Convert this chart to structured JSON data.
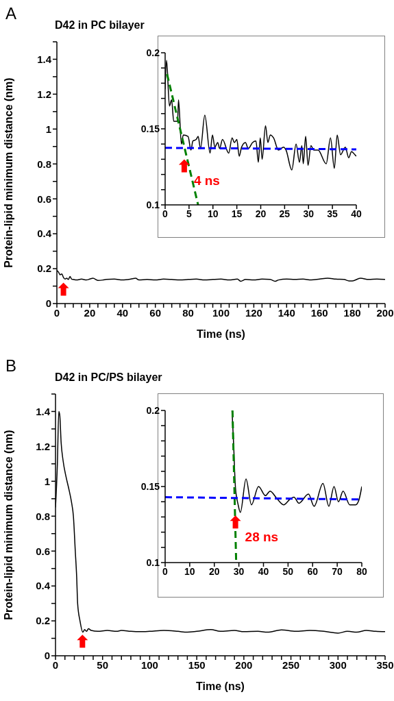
{
  "chart_data": [
    {
      "type": "line",
      "title": "D42 in PC bilayer",
      "xlabel": "Time (ns)",
      "ylabel": "Protein-lipid minimum distance (nm)",
      "annotations": [
        "A"
      ],
      "xlim": [
        0,
        200
      ],
      "xticks": [
        0,
        {
          "value": 5,
          "label": null
        },
        {
          "value": 10,
          "label": null
        },
        {
          "value": 15,
          "label": null
        },
        20,
        {
          "value": 25,
          "label": null
        },
        {
          "value": 30,
          "label": null
        },
        {
          "value": 35,
          "label": null
        },
        40,
        {
          "value": 45,
          "label": null
        },
        {
          "value": 50,
          "label": null
        },
        {
          "value": 55,
          "label": null
        },
        60,
        {
          "value": 65,
          "label": null
        },
        {
          "value": 70,
          "label": null
        },
        {
          "value": 75,
          "label": null
        },
        80,
        {
          "value": 85,
          "label": null
        },
        {
          "value": 90,
          "label": null
        },
        {
          "value": 95,
          "label": null
        },
        100,
        {
          "value": 105,
          "label": null
        },
        {
          "value": 110,
          "label": null
        },
        {
          "value": 115,
          "label": null
        },
        120,
        {
          "value": 125,
          "label": null
        },
        {
          "value": 130,
          "label": null
        },
        {
          "value": 135,
          "label": null
        },
        140,
        {
          "value": 145,
          "label": null
        },
        {
          "value": 150,
          "label": null
        },
        {
          "value": 155,
          "label": null
        },
        160,
        {
          "value": 165,
          "label": null
        },
        {
          "value": 170,
          "label": null
        },
        {
          "value": 175,
          "label": null
        },
        180,
        {
          "value": 185,
          "label": null
        },
        {
          "value": 190,
          "label": null
        },
        {
          "value": 195,
          "label": null
        },
        200
      ],
      "ylim": [
        0,
        1.5
      ],
      "yticks": [
        0,
        {
          "value": 0.1,
          "label": null
        },
        0.2,
        {
          "value": 0.3,
          "label": null
        },
        0.4,
        {
          "value": 0.5,
          "label": null
        },
        0.6,
        {
          "value": 0.7,
          "label": null
        },
        0.8,
        {
          "value": 0.9,
          "label": null
        },
        1,
        {
          "value": 1.1,
          "label": null
        },
        1.2,
        {
          "value": 1.3,
          "label": null
        },
        1.4,
        {
          "value": 1.5,
          "label": null
        }
      ],
      "series": [
        {
          "color": "#000000",
          "x": [
            0,
            1,
            2,
            3,
            4,
            5,
            6,
            7,
            8,
            9,
            10,
            12,
            15,
            18,
            20,
            22,
            25,
            28,
            30,
            35,
            40,
            45,
            48,
            50,
            55,
            60,
            65,
            70,
            75,
            80,
            85,
            90,
            95,
            100,
            105,
            110,
            112,
            115,
            120,
            125,
            130,
            133,
            135,
            140,
            145,
            150,
            155,
            160,
            165,
            170,
            175,
            178,
            180,
            185,
            190,
            195,
            200
          ],
          "values": [
            0.19,
            0.18,
            0.165,
            0.17,
            0.15,
            0.14,
            0.145,
            0.138,
            0.155,
            0.14,
            0.138,
            0.135,
            0.14,
            0.135,
            0.14,
            0.145,
            0.133,
            0.135,
            0.138,
            0.14,
            0.135,
            0.14,
            0.145,
            0.135,
            0.138,
            0.135,
            0.14,
            0.138,
            0.135,
            0.138,
            0.14,
            0.135,
            0.138,
            0.14,
            0.135,
            0.14,
            0.128,
            0.138,
            0.135,
            0.14,
            0.138,
            0.128,
            0.135,
            0.14,
            0.138,
            0.14,
            0.135,
            0.14,
            0.145,
            0.14,
            0.138,
            0.13,
            0.13,
            0.145,
            0.138,
            0.14,
            0.138
          ]
        }
      ]
    },
    {
      "type": "line",
      "annotations": [
        {
          "text": "4 ns",
          "x": 4,
          "y": 0.13
        }
      ],
      "xlim": [
        0,
        40
      ],
      "xticks": [
        0,
        5,
        10,
        15,
        20,
        25,
        30,
        35,
        40
      ],
      "ylim": [
        0.1,
        0.2
      ],
      "yticks": [
        0.1,
        {
          "value": 0.11,
          "label": null
        },
        {
          "value": 0.12,
          "label": null
        },
        {
          "value": 0.13,
          "label": null
        },
        {
          "value": 0.14,
          "label": null
        },
        0.15,
        {
          "value": 0.16,
          "label": null
        },
        {
          "value": 0.17,
          "label": null
        },
        {
          "value": 0.18,
          "label": null
        },
        {
          "value": 0.19,
          "label": null
        },
        0.2
      ],
      "series": [
        {
          "color": "#000000",
          "x": [
            0,
            0.3,
            0.9,
            1.35,
            1.8,
            2.6,
            2.8,
            3.4,
            3.8,
            4.8,
            5.4,
            5.8,
            6.5,
            6.9,
            7.4,
            8.3,
            9.4,
            9.9,
            10.4,
            11,
            11.4,
            12,
            13.3,
            14,
            14.5,
            15,
            15.5,
            16,
            16.8,
            17.4,
            18.3,
            19,
            19.5,
            19.9,
            20.3,
            21,
            21.5,
            22,
            22.7,
            23.7,
            24.8,
            25.3,
            26.5,
            27.4,
            28.1,
            28.6,
            28.9,
            29.4,
            29.9,
            30.5,
            31.1,
            32,
            33.7,
            34.6,
            35.4,
            36,
            36.7,
            37.7,
            38.4,
            39,
            39.7,
            40
          ],
          "values": [
            0.176,
            0.195,
            0.165,
            0.169,
            0.155,
            0.155,
            0.169,
            0.14,
            0.146,
            0.145,
            0.136,
            0.142,
            0.143,
            0.145,
            0.137,
            0.159,
            0.134,
            0.146,
            0.138,
            0.141,
            0.137,
            0.143,
            0.134,
            0.144,
            0.141,
            0.143,
            0.132,
            0.138,
            0.141,
            0.137,
            0.141,
            0.142,
            0.128,
            0.144,
            0.13,
            0.152,
            0.141,
            0.146,
            0.144,
            0.136,
            0.138,
            0.136,
            0.123,
            0.14,
            0.128,
            0.139,
            0.127,
            0.145,
            0.126,
            0.139,
            0.136,
            0.136,
            0.127,
            0.144,
            0.124,
            0.146,
            0.133,
            0.138,
            0.131,
            0.135,
            0.133,
            0.132
          ]
        },
        {
          "color": "#008000",
          "line_style": "dashed",
          "x": [
            0.4,
            6.9
          ],
          "values": [
            0.186,
            0.1
          ]
        },
        {
          "color": "#0000ff",
          "line_style": "dashed",
          "x": [
            0,
            40
          ],
          "values": [
            0.1375,
            0.1365
          ]
        }
      ]
    },
    {
      "type": "line",
      "title": "D42 in PC/PS bilayer",
      "xlabel": "Time (ns)",
      "ylabel": "Protein-lipid minimum distance (nm)",
      "annotations": [
        "B"
      ],
      "xlim": [
        0,
        350
      ],
      "xticks": [
        0,
        {
          "value": 10,
          "label": null
        },
        {
          "value": 20,
          "label": null
        },
        {
          "value": 30,
          "label": null
        },
        {
          "value": 40,
          "label": null
        },
        50,
        {
          "value": 60,
          "label": null
        },
        {
          "value": 70,
          "label": null
        },
        {
          "value": 80,
          "label": null
        },
        {
          "value": 90,
          "label": null
        },
        100,
        {
          "value": 110,
          "label": null
        },
        {
          "value": 120,
          "label": null
        },
        {
          "value": 130,
          "label": null
        },
        {
          "value": 140,
          "label": null
        },
        150,
        {
          "value": 160,
          "label": null
        },
        {
          "value": 170,
          "label": null
        },
        {
          "value": 180,
          "label": null
        },
        {
          "value": 190,
          "label": null
        },
        200,
        {
          "value": 210,
          "label": null
        },
        {
          "value": 220,
          "label": null
        },
        {
          "value": 230,
          "label": null
        },
        {
          "value": 240,
          "label": null
        },
        250,
        {
          "value": 260,
          "label": null
        },
        {
          "value": 270,
          "label": null
        },
        {
          "value": 280,
          "label": null
        },
        {
          "value": 290,
          "label": null
        },
        300,
        {
          "value": 310,
          "label": null
        },
        {
          "value": 320,
          "label": null
        },
        {
          "value": 330,
          "label": null
        },
        {
          "value": 340,
          "label": null
        },
        350
      ],
      "ylim": [
        0,
        1.5
      ],
      "yticks": [
        0,
        {
          "value": 0.1,
          "label": null
        },
        0.2,
        {
          "value": 0.3,
          "label": null
        },
        0.4,
        {
          "value": 0.5,
          "label": null
        },
        0.6,
        {
          "value": 0.7,
          "label": null
        },
        0.8,
        {
          "value": 0.9,
          "label": null
        },
        1,
        {
          "value": 1.1,
          "label": null
        },
        1.2,
        {
          "value": 1.3,
          "label": null
        },
        1.4,
        {
          "value": 1.5,
          "label": null
        }
      ],
      "series": [
        {
          "color": "#000000",
          "x": [
            0,
            2,
            3.5,
            4.5,
            6,
            8,
            11,
            14,
            17,
            19,
            21,
            22.5,
            23.5,
            26,
            29,
            31,
            33,
            35,
            38,
            45,
            55,
            65,
            70,
            80,
            90,
            100,
            115,
            130,
            140,
            150,
            165,
            175,
            190,
            200,
            215,
            225,
            240,
            255,
            270,
            285,
            300,
            310,
            320,
            330,
            340,
            350
          ],
          "values": [
            0.85,
            1.1,
            1.4,
            1.38,
            1.22,
            1.12,
            1.03,
            0.96,
            0.88,
            0.8,
            0.6,
            0.45,
            0.3,
            0.2,
            0.135,
            0.15,
            0.14,
            0.155,
            0.145,
            0.14,
            0.145,
            0.14,
            0.145,
            0.14,
            0.138,
            0.14,
            0.145,
            0.14,
            0.135,
            0.14,
            0.15,
            0.14,
            0.145,
            0.138,
            0.14,
            0.135,
            0.148,
            0.14,
            0.145,
            0.14,
            0.13,
            0.14,
            0.135,
            0.145,
            0.14,
            0.138
          ]
        }
      ]
    },
    {
      "type": "line",
      "annotations": [
        {
          "text": "28 ns",
          "x": 28.6,
          "y": 0.131
        }
      ],
      "xlim": [
        0,
        80
      ],
      "xticks": [
        0,
        10,
        20,
        30,
        40,
        50,
        60,
        70,
        80
      ],
      "ylim": [
        0.1,
        0.2
      ],
      "yticks": [
        0.1,
        {
          "value": 0.11,
          "label": null
        },
        {
          "value": 0.12,
          "label": null
        },
        {
          "value": 0.13,
          "label": null
        },
        {
          "value": 0.14,
          "label": null
        },
        0.15,
        {
          "value": 0.16,
          "label": null
        },
        {
          "value": 0.17,
          "label": null
        },
        {
          "value": 0.18,
          "label": null
        },
        {
          "value": 0.19,
          "label": null
        },
        0.2
      ],
      "series": [
        {
          "color": "#000000",
          "x": [
            27.2,
            27.8,
            28.6,
            29.7,
            30.6,
            32.9,
            35.1,
            38,
            40.8,
            42.7,
            45.5,
            48.2,
            51,
            52.4,
            54.4,
            58.3,
            60.6,
            64.2,
            66.6,
            68.7,
            70.5,
            72.4,
            75.1,
            77.5,
            78.8,
            80
          ],
          "values": [
            0.2,
            0.18,
            0.1494,
            0.138,
            0.133,
            0.155,
            0.138,
            0.15,
            0.144,
            0.147,
            0.142,
            0.138,
            0.142,
            0.143,
            0.139,
            0.145,
            0.137,
            0.152,
            0.137,
            0.15,
            0.14,
            0.147,
            0.138,
            0.138,
            0.141,
            0.15
          ]
        },
        {
          "color": "#008000",
          "line_style": "dashed",
          "x": [
            27.4,
            28.9
          ],
          "values": [
            0.2,
            0.1
          ]
        },
        {
          "color": "#0000ff",
          "line_style": "dashed",
          "x": [
            0,
            80
          ],
          "values": [
            0.143,
            0.1415
          ]
        }
      ]
    }
  ]
}
